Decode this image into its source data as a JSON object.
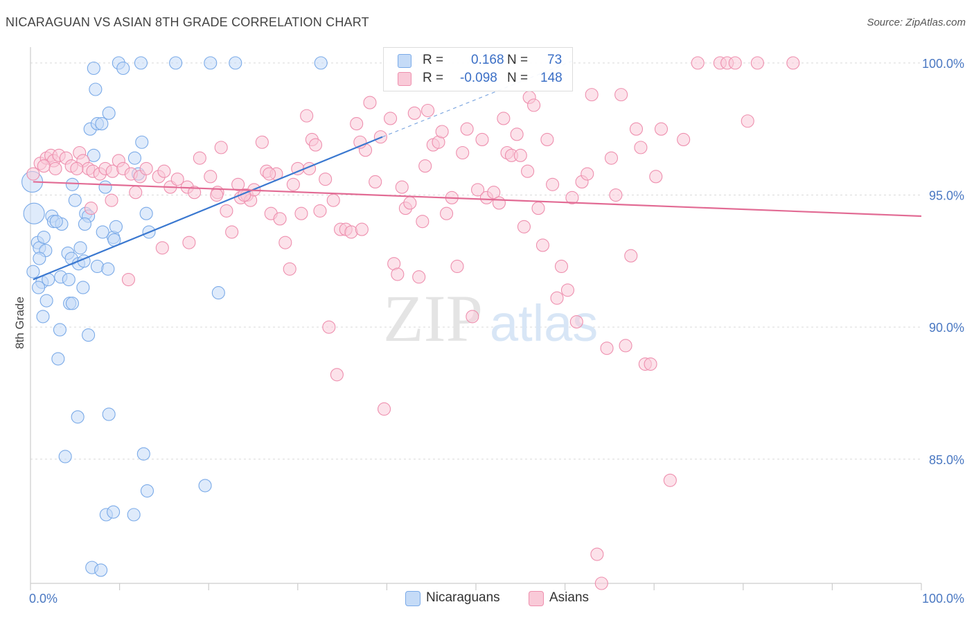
{
  "title": "NICARAGUAN VS ASIAN 8TH GRADE CORRELATION CHART",
  "source": "Source: ZipAtlas.com",
  "watermark": {
    "zip": "ZIP",
    "atlas": "atlas"
  },
  "legend": {
    "r_label": "R =",
    "n_label": "N =",
    "rows": [
      {
        "name": "Nicaraguans",
        "r": "0.168",
        "n": "73",
        "color": "#7aaae8",
        "fill": "#c5dbf7"
      },
      {
        "name": "Asians",
        "r": "-0.098",
        "n": "148",
        "color": "#ee8fae",
        "fill": "#f9cad8"
      }
    ]
  },
  "chart_data": {
    "type": "scatter",
    "title": "NICARAGUAN VS ASIAN 8TH GRADE CORRELATION CHART",
    "xlabel": "",
    "ylabel": "8th Grade",
    "xlim": [
      0,
      100
    ],
    "ylim": [
      80.3,
      100.6
    ],
    "x_tick_labels": [
      "0.0%",
      "100.0%"
    ],
    "y_ticks": [
      85,
      90,
      95,
      100
    ],
    "y_tick_labels": [
      "85.0%",
      "90.0%",
      "95.0%",
      "100.0%"
    ],
    "grid": true,
    "legend_position": "top-center",
    "series": [
      {
        "name": "Nicaraguans",
        "color": "#5b8fd6",
        "fill": "#c5dbf7",
        "trend": {
          "x0": 0.3,
          "y0": 91.8,
          "x1": 39.5,
          "y1": 97.2,
          "x_dash_end": 61.0,
          "y_dash_end": 100.1
        },
        "points": [
          [
            0.2,
            95.5
          ],
          [
            0.4,
            94.3
          ],
          [
            0.3,
            92.1
          ],
          [
            0.8,
            93.2
          ],
          [
            1.0,
            93.0
          ],
          [
            1.5,
            93.4
          ],
          [
            1.7,
            92.9
          ],
          [
            1.3,
            91.7
          ],
          [
            0.9,
            91.5
          ],
          [
            1.8,
            91.0
          ],
          [
            1.4,
            90.4
          ],
          [
            3.3,
            89.9
          ],
          [
            3.1,
            88.8
          ],
          [
            2.4,
            94.2
          ],
          [
            2.6,
            94.0
          ],
          [
            3.5,
            93.9
          ],
          [
            4.7,
            95.4
          ],
          [
            5.0,
            94.8
          ],
          [
            6.2,
            94.3
          ],
          [
            6.5,
            94.2
          ],
          [
            6.1,
            93.9
          ],
          [
            4.2,
            92.8
          ],
          [
            4.6,
            92.6
          ],
          [
            5.4,
            92.4
          ],
          [
            6.0,
            92.5
          ],
          [
            7.5,
            92.3
          ],
          [
            8.7,
            92.2
          ],
          [
            3.4,
            91.9
          ],
          [
            4.3,
            91.8
          ],
          [
            5.9,
            91.5
          ],
          [
            4.4,
            90.9
          ],
          [
            4.7,
            90.9
          ],
          [
            6.5,
            89.7
          ],
          [
            6.7,
            97.5
          ],
          [
            7.1,
            99.8
          ],
          [
            7.3,
            99.0
          ],
          [
            7.5,
            97.7
          ],
          [
            8.0,
            97.7
          ],
          [
            8.8,
            98.1
          ],
          [
            7.1,
            96.5
          ],
          [
            8.4,
            95.3
          ],
          [
            9.3,
            93.4
          ],
          [
            9.4,
            93.3
          ],
          [
            9.9,
            100.0
          ],
          [
            10.4,
            99.8
          ],
          [
            12.4,
            100.0
          ],
          [
            11.7,
            96.4
          ],
          [
            12.5,
            97.0
          ],
          [
            12.1,
            95.8
          ],
          [
            13.0,
            94.3
          ],
          [
            13.3,
            93.6
          ],
          [
            16.3,
            100.0
          ],
          [
            20.2,
            100.0
          ],
          [
            23.0,
            100.0
          ],
          [
            32.6,
            100.0
          ],
          [
            21.1,
            91.3
          ],
          [
            5.3,
            86.6
          ],
          [
            8.8,
            86.7
          ],
          [
            3.9,
            85.1
          ],
          [
            12.7,
            85.2
          ],
          [
            13.1,
            83.8
          ],
          [
            19.6,
            84.0
          ],
          [
            8.5,
            82.9
          ],
          [
            9.3,
            83.0
          ],
          [
            11.6,
            82.9
          ],
          [
            6.9,
            80.9
          ],
          [
            7.9,
            80.8
          ],
          [
            9.6,
            93.8
          ],
          [
            2.9,
            94.0
          ],
          [
            5.6,
            93.0
          ],
          [
            8.1,
            93.6
          ],
          [
            1.0,
            92.6
          ],
          [
            2.0,
            91.8
          ]
        ]
      },
      {
        "name": "Asians",
        "color": "#e26b94",
        "fill": "#f9cad8",
        "trend": {
          "x0": 0.3,
          "y0": 95.5,
          "x1": 100.0,
          "y1": 94.2
        },
        "points": [
          [
            0.3,
            95.8
          ],
          [
            1.1,
            96.2
          ],
          [
            1.8,
            96.4
          ],
          [
            2.3,
            96.5
          ],
          [
            2.6,
            96.3
          ],
          [
            3.2,
            96.5
          ],
          [
            4.0,
            96.4
          ],
          [
            4.6,
            96.1
          ],
          [
            5.5,
            96.6
          ],
          [
            5.9,
            96.3
          ],
          [
            6.5,
            96.0
          ],
          [
            7.0,
            95.9
          ],
          [
            7.8,
            95.8
          ],
          [
            8.4,
            96.0
          ],
          [
            9.2,
            95.9
          ],
          [
            9.9,
            96.3
          ],
          [
            10.4,
            96.0
          ],
          [
            11.3,
            95.8
          ],
          [
            12.3,
            95.7
          ],
          [
            13.0,
            96.0
          ],
          [
            14.4,
            95.7
          ],
          [
            15.0,
            95.9
          ],
          [
            15.7,
            95.3
          ],
          [
            16.5,
            95.6
          ],
          [
            17.6,
            95.3
          ],
          [
            18.4,
            95.1
          ],
          [
            19.0,
            96.4
          ],
          [
            20.2,
            95.7
          ],
          [
            21.0,
            95.1
          ],
          [
            21.4,
            96.8
          ],
          [
            22.0,
            94.4
          ],
          [
            22.6,
            93.6
          ],
          [
            23.3,
            95.4
          ],
          [
            23.6,
            94.9
          ],
          [
            24.3,
            95.0
          ],
          [
            24.7,
            94.8
          ],
          [
            25.1,
            95.2
          ],
          [
            26.0,
            97.0
          ],
          [
            26.5,
            95.9
          ],
          [
            27.0,
            94.3
          ],
          [
            27.6,
            95.8
          ],
          [
            28.0,
            94.1
          ],
          [
            28.6,
            93.2
          ],
          [
            29.1,
            92.2
          ],
          [
            29.5,
            95.4
          ],
          [
            30.0,
            96.0
          ],
          [
            30.4,
            94.3
          ],
          [
            31.0,
            98.0
          ],
          [
            31.6,
            97.1
          ],
          [
            32.0,
            96.9
          ],
          [
            32.5,
            94.4
          ],
          [
            33.1,
            95.6
          ],
          [
            33.5,
            90.0
          ],
          [
            34.0,
            94.8
          ],
          [
            34.4,
            88.2
          ],
          [
            34.8,
            93.7
          ],
          [
            35.4,
            93.7
          ],
          [
            36.0,
            93.6
          ],
          [
            36.6,
            97.7
          ],
          [
            37.2,
            93.7
          ],
          [
            37.6,
            96.7
          ],
          [
            38.1,
            98.5
          ],
          [
            38.7,
            95.5
          ],
          [
            39.3,
            97.2
          ],
          [
            39.7,
            86.9
          ],
          [
            40.4,
            97.9
          ],
          [
            40.8,
            92.4
          ],
          [
            41.2,
            92.0
          ],
          [
            41.7,
            95.3
          ],
          [
            42.1,
            94.5
          ],
          [
            42.6,
            94.7
          ],
          [
            43.1,
            98.1
          ],
          [
            43.6,
            91.9
          ],
          [
            44.0,
            94.0
          ],
          [
            44.6,
            98.2
          ],
          [
            45.2,
            96.9
          ],
          [
            45.8,
            97.0
          ],
          [
            46.2,
            97.4
          ],
          [
            46.7,
            94.3
          ],
          [
            47.3,
            94.9
          ],
          [
            47.9,
            92.3
          ],
          [
            48.5,
            96.6
          ],
          [
            49.0,
            97.5
          ],
          [
            49.6,
            90.4
          ],
          [
            50.2,
            95.2
          ],
          [
            50.7,
            97.1
          ],
          [
            51.2,
            94.9
          ],
          [
            52.0,
            95.1
          ],
          [
            52.6,
            94.7
          ],
          [
            53.1,
            97.9
          ],
          [
            53.5,
            96.6
          ],
          [
            54.0,
            96.5
          ],
          [
            54.6,
            97.3
          ],
          [
            55.0,
            96.5
          ],
          [
            55.4,
            93.8
          ],
          [
            56.0,
            98.7
          ],
          [
            56.5,
            98.4
          ],
          [
            57.0,
            94.5
          ],
          [
            57.5,
            93.1
          ],
          [
            58.0,
            97.1
          ],
          [
            58.6,
            95.4
          ],
          [
            59.1,
            91.1
          ],
          [
            59.6,
            92.3
          ],
          [
            60.3,
            91.4
          ],
          [
            60.8,
            94.9
          ],
          [
            61.3,
            90.2
          ],
          [
            61.9,
            95.5
          ],
          [
            62.5,
            95.8
          ],
          [
            63.0,
            98.8
          ],
          [
            63.6,
            81.4
          ],
          [
            64.1,
            80.3
          ],
          [
            64.7,
            89.2
          ],
          [
            65.2,
            96.4
          ],
          [
            65.7,
            95.0
          ],
          [
            66.3,
            98.8
          ],
          [
            66.8,
            89.3
          ],
          [
            67.4,
            92.7
          ],
          [
            68.0,
            97.5
          ],
          [
            68.5,
            96.8
          ],
          [
            69.0,
            88.6
          ],
          [
            69.6,
            88.6
          ],
          [
            70.2,
            95.7
          ],
          [
            70.8,
            97.5
          ],
          [
            71.8,
            84.2
          ],
          [
            73.3,
            97.1
          ],
          [
            74.9,
            100.0
          ],
          [
            77.4,
            100.0
          ],
          [
            78.2,
            100.0
          ],
          [
            79.1,
            100.0
          ],
          [
            80.5,
            97.8
          ],
          [
            81.6,
            100.0
          ],
          [
            85.6,
            100.0
          ],
          [
            1.5,
            96.1
          ],
          [
            2.8,
            96.0
          ],
          [
            5.2,
            96.0
          ],
          [
            6.8,
            94.5
          ],
          [
            9.1,
            94.8
          ],
          [
            11.8,
            95.1
          ],
          [
            11.0,
            91.8
          ],
          [
            14.8,
            93.0
          ],
          [
            17.8,
            93.2
          ],
          [
            20.9,
            95.0
          ],
          [
            24.0,
            95.0
          ],
          [
            26.8,
            95.8
          ],
          [
            31.3,
            96.0
          ],
          [
            37.0,
            97.0
          ],
          [
            44.3,
            96.1
          ],
          [
            55.8,
            95.9
          ]
        ]
      }
    ]
  }
}
